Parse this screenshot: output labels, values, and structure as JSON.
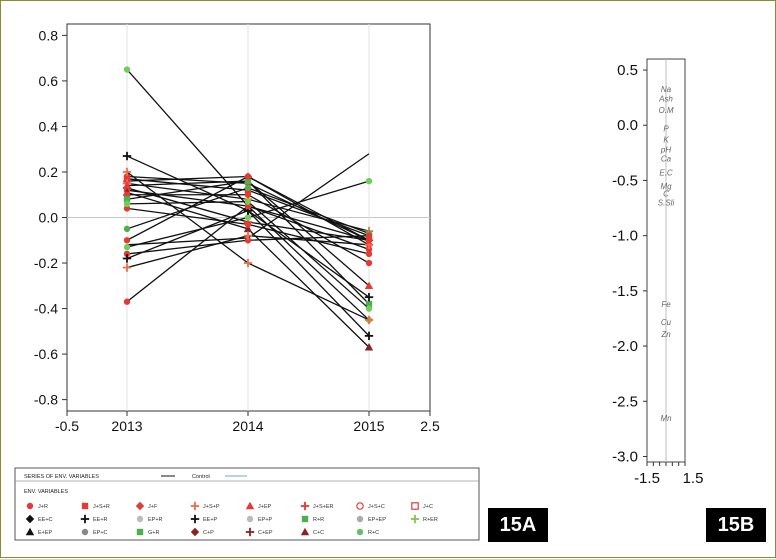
{
  "chart_data": [
    {
      "type": "line",
      "x": [
        "2013",
        "2014",
        "2015"
      ],
      "xticks": [
        "-0.5",
        "2013",
        "2014",
        "2015",
        "2.5"
      ],
      "ylim": [
        -0.85,
        0.85
      ],
      "yticks": [
        "0.8",
        "0.6",
        "0.4",
        "0.2",
        "0.0",
        "-0.2",
        "-0.4",
        "-0.6",
        "-0.8"
      ],
      "grid": false,
      "zero_line": true,
      "legend": {
        "placement": "below",
        "header": "SERIES OF ENV. VARIABLES",
        "control_label": "Control",
        "env_label": "ENV. VARIABLES",
        "entries": [
          {
            "label": "J+R",
            "marker": "circle",
            "color": "#e53935"
          },
          {
            "label": "J+S+R",
            "marker": "square",
            "color": "#e53935"
          },
          {
            "label": "J+F",
            "marker": "diamond",
            "color": "#e53935"
          },
          {
            "label": "J+S+P",
            "marker": "plus",
            "color": "#ef6c4a"
          },
          {
            "label": "J+EP",
            "marker": "triangle",
            "color": "#e53935"
          },
          {
            "label": "J+S+ER",
            "marker": "plus",
            "color": "#e53935"
          },
          {
            "label": "J+S+C",
            "marker": "open-circle",
            "color": "#e53935"
          },
          {
            "label": "J+C",
            "marker": "open-square",
            "color": "#e53935"
          },
          {
            "label": "EE+C",
            "marker": "diamond",
            "color": "#111111"
          },
          {
            "label": "EE+R",
            "marker": "plus",
            "color": "#111111"
          },
          {
            "label": "EP+R",
            "marker": "circle",
            "color": "#bbbbbb"
          },
          {
            "label": "EE+P",
            "marker": "plus",
            "color": "#111111"
          },
          {
            "label": "EP+P",
            "marker": "circle",
            "color": "#bbbbbb"
          },
          {
            "label": "R+R",
            "marker": "square",
            "color": "#4caf50"
          },
          {
            "label": "EP+EP",
            "marker": "circle",
            "color": "#aaaaaa"
          },
          {
            "label": "R+ER",
            "marker": "plus",
            "color": "#8bc34a"
          },
          {
            "label": "E+EP",
            "marker": "triangle",
            "color": "#111111"
          },
          {
            "label": "EP+C",
            "marker": "circle",
            "color": "#888888"
          },
          {
            "label": "G+R",
            "marker": "square",
            "color": "#4caf50"
          },
          {
            "label": "C+P",
            "marker": "diamond",
            "color": "#8b2222"
          },
          {
            "label": "C+EP",
            "marker": "plus",
            "color": "#8b2222"
          },
          {
            "label": "C+C",
            "marker": "triangle",
            "color": "#8b2222"
          },
          {
            "label": "R+C",
            "marker": "circle",
            "color": "#66bb6a"
          }
        ]
      },
      "series": [
        {
          "values": [
            0.65,
            0.05,
            -0.45
          ],
          "marker": "circle",
          "color": "#6fcf57"
        },
        {
          "values": [
            0.27,
            0.03,
            -0.52
          ],
          "marker": "plus",
          "color": "#111111"
        },
        {
          "values": [
            0.18,
            0.15,
            -0.1
          ],
          "marker": "circle",
          "color": "#e53935"
        },
        {
          "values": [
            0.17,
            0.12,
            -0.08
          ],
          "marker": "square",
          "color": "#e53935"
        },
        {
          "values": [
            0.16,
            0.18,
            -0.12
          ],
          "marker": "diamond",
          "color": "#e53935"
        },
        {
          "values": [
            0.15,
            0.08,
            -0.06
          ],
          "marker": "plus",
          "color": "#ef6c4a"
        },
        {
          "values": [
            0.14,
            0.16,
            -0.3
          ],
          "marker": "triangle",
          "color": "#e53935"
        },
        {
          "values": [
            0.13,
            -0.02,
            -0.1
          ],
          "marker": "plus",
          "color": "#e53935"
        },
        {
          "values": [
            0.12,
            0.05,
            -0.14
          ],
          "marker": "circle",
          "color": "#e53935"
        },
        {
          "values": [
            0.11,
            -0.05,
            -0.57
          ],
          "marker": "triangle",
          "color": "#8b2222"
        },
        {
          "values": [
            0.1,
            0.1,
            -0.2
          ],
          "marker": "circle",
          "color": "#e53935"
        },
        {
          "values": [
            0.08,
            0.16,
            -0.38
          ],
          "marker": "square",
          "color": "#4caf50"
        },
        {
          "values": [
            0.04,
            -0.03,
            -0.16
          ],
          "marker": "circle",
          "color": "#e53935"
        },
        {
          "values": [
            -0.05,
            0.13,
            -0.07
          ],
          "marker": "circle",
          "color": "#4caf50"
        },
        {
          "values": [
            -0.1,
            0.18,
            -0.1
          ],
          "marker": "circle",
          "color": "#e53935"
        },
        {
          "values": [
            -0.12,
            -0.09,
            0.28
          ],
          "marker": "none",
          "color": "#111111"
        },
        {
          "values": [
            -0.13,
            0.0,
            0.16
          ],
          "marker": "circle",
          "color": "#6fcf57"
        },
        {
          "values": [
            -0.16,
            -0.1,
            -0.08
          ],
          "marker": "circle",
          "color": "#e53935"
        },
        {
          "values": [
            -0.18,
            0.03,
            -0.35
          ],
          "marker": "plus",
          "color": "#111111"
        },
        {
          "values": [
            -0.22,
            -0.08,
            -0.12
          ],
          "marker": "plus",
          "color": "#ef6c4a"
        },
        {
          "values": [
            -0.37,
            0.05,
            -0.1
          ],
          "marker": "circle",
          "color": "#e53935"
        },
        {
          "values": [
            0.2,
            -0.2,
            -0.45
          ],
          "marker": "plus",
          "color": "#ef6c4a"
        },
        {
          "values": [
            0.06,
            0.07,
            -0.4
          ],
          "marker": "circle",
          "color": "#6fcf57"
        }
      ]
    },
    {
      "type": "scatter",
      "ylim": [
        -3.05,
        0.6
      ],
      "yticks": [
        "0.5",
        "0.0",
        "-0.5",
        "-1.0",
        "-1.5",
        "-2.0",
        "-2.5",
        "-3.0"
      ],
      "xticks": [
        "-1.5",
        "1.5"
      ],
      "labels": [
        {
          "text": "Na",
          "y": 0.33
        },
        {
          "text": "Ash",
          "y": 0.24
        },
        {
          "text": "O.M",
          "y": 0.14
        },
        {
          "text": "P",
          "y": -0.03
        },
        {
          "text": "K",
          "y": -0.13
        },
        {
          "text": "pH",
          "y": -0.22
        },
        {
          "text": "Ca",
          "y": -0.3
        },
        {
          "text": "E.C",
          "y": -0.43
        },
        {
          "text": "Mg",
          "y": -0.55
        },
        {
          "text": "C",
          "y": -0.62
        },
        {
          "text": "S.Sli",
          "y": -0.7
        },
        {
          "text": "Fe",
          "y": -1.62
        },
        {
          "text": "Cu",
          "y": -1.78
        },
        {
          "text": "Zn",
          "y": -1.89
        },
        {
          "text": "Mn",
          "y": -2.65
        }
      ]
    }
  ],
  "panels": {
    "a_label": "15A",
    "b_label": "15B"
  }
}
